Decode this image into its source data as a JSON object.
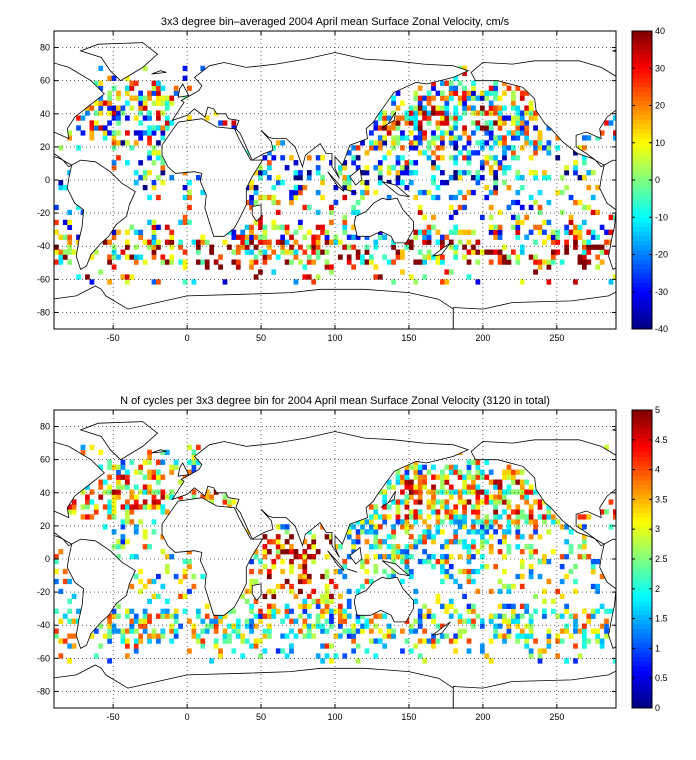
{
  "chart_data": [
    {
      "type": "heatmap",
      "title": "3x3 degree bin–averaged 2004 April mean Surface Zonal Velocity, cm/s",
      "xlabel": "",
      "ylabel": "",
      "xlim": [
        -90,
        290
      ],
      "ylim": [
        -90,
        90
      ],
      "x_ticks": [
        -50,
        0,
        50,
        100,
        150,
        200,
        250
      ],
      "y_ticks": [
        -80,
        -60,
        -40,
        -20,
        0,
        20,
        40,
        60,
        80
      ],
      "grid": true,
      "bin_size_deg": 3,
      "colormap": "jet",
      "colorbar": {
        "min": -40,
        "max": 40,
        "ticks": [
          -40,
          -30,
          -20,
          -10,
          0,
          10,
          20,
          30,
          40
        ],
        "placement": "right"
      },
      "seed": 7
    },
    {
      "type": "heatmap",
      "title": "N of cycles per 3x3 degree bin for 2004 April mean Surface Zonal Velocity (3120 in total)",
      "xlabel": "",
      "ylabel": "",
      "xlim": [
        -90,
        290
      ],
      "ylim": [
        -90,
        90
      ],
      "x_ticks": [
        -50,
        0,
        50,
        100,
        150,
        200,
        250
      ],
      "y_ticks": [
        -80,
        -60,
        -40,
        -20,
        0,
        20,
        40,
        60,
        80
      ],
      "grid": true,
      "bin_size_deg": 3,
      "colormap": "jet",
      "colorbar": {
        "min": 0,
        "max": 5,
        "ticks": [
          0,
          0.5,
          1,
          1.5,
          2,
          2.5,
          3,
          3.5,
          4,
          4.5,
          5
        ],
        "placement": "right"
      },
      "seed": 23
    }
  ],
  "colors": {
    "background": "#ffffff",
    "axes": "#000000",
    "grid": "#000000"
  }
}
